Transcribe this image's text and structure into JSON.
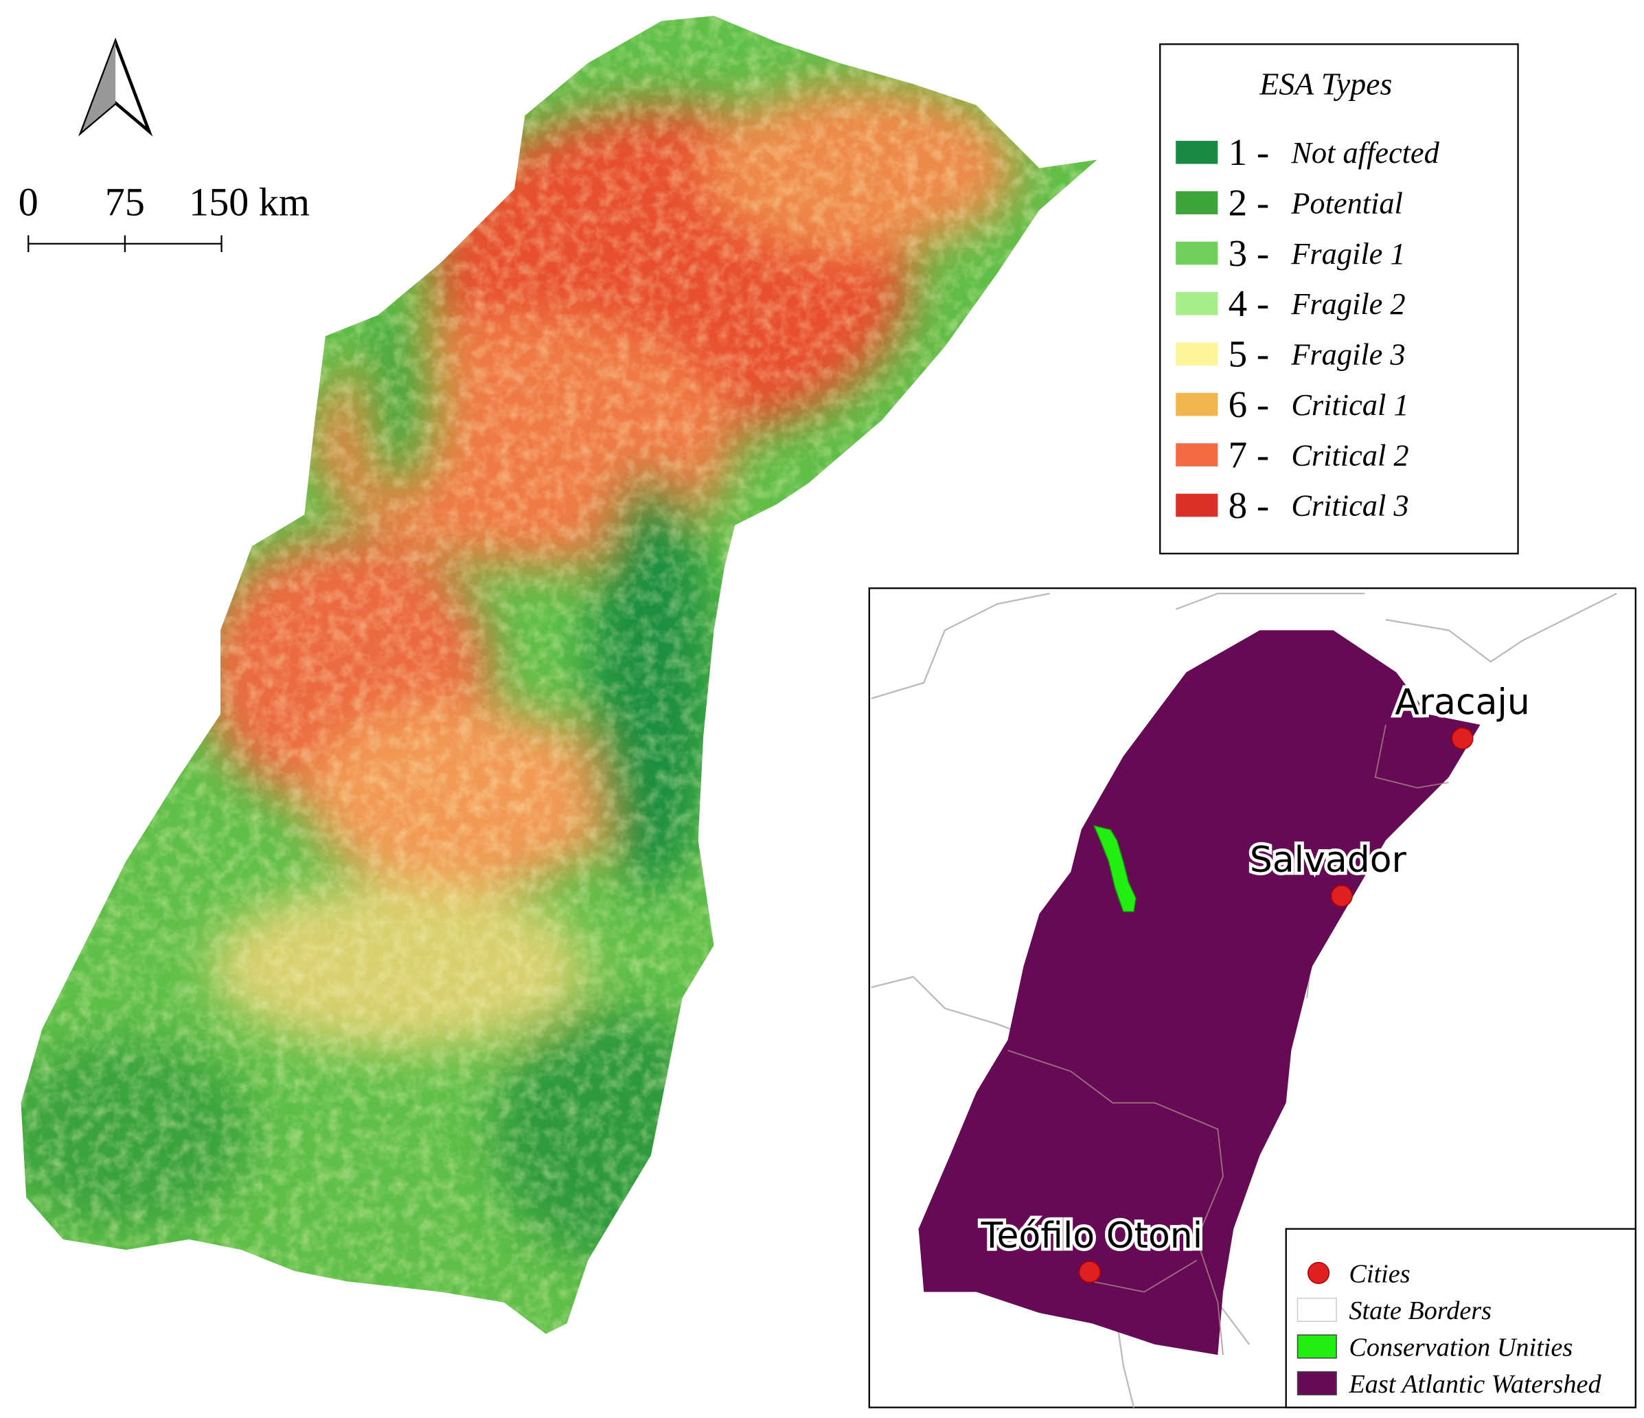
{
  "scale_bar": {
    "labels": [
      "0",
      "75",
      "150 km"
    ]
  },
  "legend": {
    "title": "ESA Types",
    "items": [
      {
        "number": "1 -",
        "label": "Not affected",
        "color": "#1b8a45"
      },
      {
        "number": "2 -",
        "label": "Potential",
        "color": "#3da33b"
      },
      {
        "number": "3 -",
        "label": "Fragile 1",
        "color": "#6fcf5a"
      },
      {
        "number": "4 -",
        "label": "Fragile 2",
        "color": "#a6ee8a"
      },
      {
        "number": "5 -",
        "label": "Fragile 3",
        "color": "#fdf59a"
      },
      {
        "number": "6 -",
        "label": "Critical 1",
        "color": "#f2b650"
      },
      {
        "number": "7 -",
        "label": "Critical 2",
        "color": "#f26b43"
      },
      {
        "number": "8 -",
        "label": "Critical 3",
        "color": "#d93028"
      }
    ]
  },
  "inset": {
    "cities": [
      "Aracaju",
      "Salvador",
      "Teófilo Otoni"
    ],
    "legend": [
      {
        "label": "Cities",
        "color": "#e02020"
      },
      {
        "label": "State Borders",
        "color": "#ffffff"
      },
      {
        "label": "Conservation Unities",
        "color": "#22ee11"
      },
      {
        "label": "East Atlantic Watershed",
        "color": "#660a55"
      }
    ]
  }
}
